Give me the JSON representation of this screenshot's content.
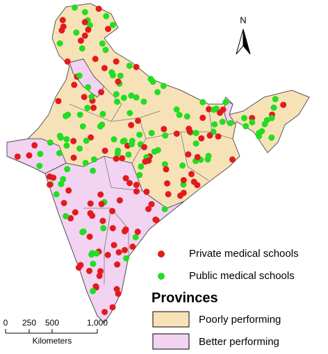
{
  "north_label": "N",
  "legend": {
    "items": [
      "Private medical schools",
      "Public medical schools"
    ],
    "title": "Provinces",
    "provinces": [
      "Poorly performing",
      "Better performing"
    ]
  },
  "scale_bar": {
    "ticks": [
      "0",
      "250",
      "500",
      "1,000"
    ],
    "unit": "Kilometers"
  }
}
